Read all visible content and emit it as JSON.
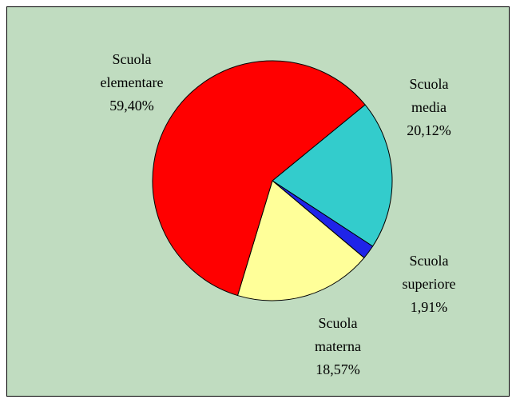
{
  "chart_data": {
    "type": "pie",
    "categories": [
      "Scuola media",
      "Scuola superiore",
      "Scuola materna",
      "Scuola elementare"
    ],
    "values": [
      20.12,
      1.91,
      18.57,
      59.4
    ],
    "value_labels": [
      "20,12%",
      "1,91%",
      "18,57%",
      "59,40%"
    ],
    "colors": [
      "#33cccc",
      "#1f24e8",
      "#ffff99",
      "#ff0000"
    ]
  }
}
